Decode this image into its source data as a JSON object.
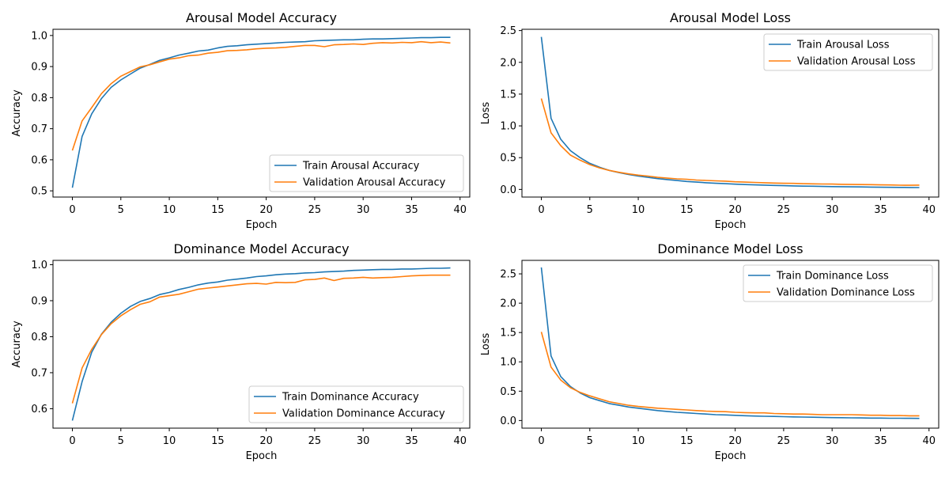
{
  "chart_data": [
    {
      "id": "arousal-acc",
      "type": "line",
      "title": "Arousal Model Accuracy",
      "xlabel": "Epoch",
      "ylabel": "Accuracy",
      "xlim": [
        -2,
        41
      ],
      "ylim": [
        0.48,
        1.02
      ],
      "xticks": [
        0,
        5,
        10,
        15,
        20,
        25,
        30,
        35,
        40
      ],
      "yticks": [
        0.5,
        0.6,
        0.7,
        0.8,
        0.9,
        1.0
      ],
      "ytick_labels": [
        "0.5",
        "0.6",
        "0.7",
        "0.8",
        "0.9",
        "1.0"
      ],
      "legend_position": "lower-right",
      "series": [
        {
          "name": "Train Arousal Accuracy",
          "color": "#1f77b4",
          "values": [
            0.51,
            0.675,
            0.748,
            0.797,
            0.833,
            0.857,
            0.876,
            0.895,
            0.907,
            0.92,
            0.928,
            0.937,
            0.943,
            0.95,
            0.953,
            0.96,
            0.965,
            0.967,
            0.97,
            0.972,
            0.974,
            0.976,
            0.978,
            0.979,
            0.98,
            0.983,
            0.984,
            0.985,
            0.986,
            0.986,
            0.988,
            0.989,
            0.989,
            0.99,
            0.991,
            0.992,
            0.993,
            0.993,
            0.994,
            0.994
          ]
        },
        {
          "name": "Validation Arousal Accuracy",
          "color": "#ff7f0e",
          "values": [
            0.63,
            0.725,
            0.768,
            0.813,
            0.845,
            0.869,
            0.884,
            0.899,
            0.906,
            0.915,
            0.924,
            0.928,
            0.935,
            0.937,
            0.943,
            0.946,
            0.951,
            0.952,
            0.954,
            0.957,
            0.959,
            0.96,
            0.962,
            0.965,
            0.968,
            0.968,
            0.964,
            0.97,
            0.971,
            0.973,
            0.971,
            0.975,
            0.977,
            0.976,
            0.978,
            0.977,
            0.98,
            0.977,
            0.979,
            0.976
          ]
        }
      ]
    },
    {
      "id": "arousal-loss",
      "type": "line",
      "title": "Arousal Model Loss",
      "xlabel": "Epoch",
      "ylabel": "Loss",
      "xlim": [
        -2,
        41
      ],
      "ylim": [
        -0.12,
        2.52
      ],
      "xticks": [
        0,
        5,
        10,
        15,
        20,
        25,
        30,
        35,
        40
      ],
      "yticks": [
        0,
        0.5,
        1.0,
        1.5,
        2.0,
        2.5
      ],
      "ytick_labels": [
        "0.0",
        "0.5",
        "1.0",
        "1.5",
        "2.0",
        "2.5"
      ],
      "legend_position": "upper-right",
      "series": [
        {
          "name": "Train Arousal Loss",
          "color": "#1f77b4",
          "values": [
            2.4,
            1.12,
            0.79,
            0.61,
            0.5,
            0.41,
            0.35,
            0.3,
            0.265,
            0.235,
            0.21,
            0.19,
            0.17,
            0.155,
            0.14,
            0.125,
            0.115,
            0.105,
            0.097,
            0.09,
            0.083,
            0.077,
            0.072,
            0.068,
            0.063,
            0.059,
            0.056,
            0.052,
            0.05,
            0.047,
            0.045,
            0.043,
            0.041,
            0.039,
            0.037,
            0.035,
            0.033,
            0.032,
            0.031,
            0.03
          ]
        },
        {
          "name": "Validation Arousal Loss",
          "color": "#ff7f0e",
          "values": [
            1.43,
            0.89,
            0.69,
            0.54,
            0.46,
            0.39,
            0.34,
            0.3,
            0.27,
            0.245,
            0.225,
            0.21,
            0.19,
            0.178,
            0.167,
            0.16,
            0.148,
            0.142,
            0.135,
            0.13,
            0.12,
            0.115,
            0.11,
            0.105,
            0.1,
            0.097,
            0.095,
            0.09,
            0.088,
            0.086,
            0.084,
            0.08,
            0.078,
            0.077,
            0.075,
            0.072,
            0.07,
            0.067,
            0.066,
            0.068
          ]
        }
      ]
    },
    {
      "id": "dominance-acc",
      "type": "line",
      "title": "Dominance Model Accuracy",
      "xlabel": "Epoch",
      "ylabel": "Accuracy",
      "xlim": [
        -2,
        41
      ],
      "ylim": [
        0.546,
        1.012
      ],
      "xticks": [
        0,
        5,
        10,
        15,
        20,
        25,
        30,
        35,
        40
      ],
      "yticks": [
        0.6,
        0.7,
        0.8,
        0.9,
        1.0
      ],
      "ytick_labels": [
        "0.6",
        "0.7",
        "0.8",
        "0.9",
        "1.0"
      ],
      "legend_position": "lower-right",
      "series": [
        {
          "name": "Train Dominance Accuracy",
          "color": "#1f77b4",
          "values": [
            0.567,
            0.675,
            0.757,
            0.807,
            0.84,
            0.865,
            0.884,
            0.898,
            0.906,
            0.917,
            0.923,
            0.931,
            0.937,
            0.944,
            0.949,
            0.952,
            0.957,
            0.96,
            0.963,
            0.967,
            0.969,
            0.972,
            0.974,
            0.975,
            0.977,
            0.978,
            0.98,
            0.981,
            0.982,
            0.984,
            0.985,
            0.986,
            0.987,
            0.987,
            0.988,
            0.988,
            0.989,
            0.99,
            0.99,
            0.991
          ]
        },
        {
          "name": "Validation Dominance Accuracy",
          "color": "#ff7f0e",
          "values": [
            0.615,
            0.713,
            0.765,
            0.806,
            0.836,
            0.858,
            0.875,
            0.89,
            0.897,
            0.91,
            0.914,
            0.918,
            0.925,
            0.932,
            0.935,
            0.938,
            0.941,
            0.944,
            0.947,
            0.948,
            0.946,
            0.951,
            0.95,
            0.951,
            0.958,
            0.959,
            0.963,
            0.956,
            0.962,
            0.963,
            0.965,
            0.963,
            0.964,
            0.965,
            0.967,
            0.969,
            0.97,
            0.971,
            0.971,
            0.971
          ]
        }
      ]
    },
    {
      "id": "dominance-loss",
      "type": "line",
      "title": "Dominance Model Loss",
      "xlabel": "Epoch",
      "ylabel": "Loss",
      "xlim": [
        -2,
        41
      ],
      "ylim": [
        -0.13,
        2.73
      ],
      "xticks": [
        0,
        5,
        10,
        15,
        20,
        25,
        30,
        35,
        40
      ],
      "yticks": [
        0,
        0.5,
        1.0,
        1.5,
        2.0,
        2.5
      ],
      "ytick_labels": [
        "0.0",
        "0.5",
        "1.0",
        "1.5",
        "2.0",
        "2.5"
      ],
      "legend_position": "upper-right",
      "series": [
        {
          "name": "Train Dominance Loss",
          "color": "#1f77b4",
          "values": [
            2.61,
            1.1,
            0.75,
            0.58,
            0.47,
            0.39,
            0.34,
            0.29,
            0.26,
            0.23,
            0.21,
            0.19,
            0.17,
            0.155,
            0.14,
            0.13,
            0.12,
            0.11,
            0.1,
            0.095,
            0.088,
            0.082,
            0.077,
            0.073,
            0.069,
            0.065,
            0.062,
            0.059,
            0.056,
            0.053,
            0.05,
            0.048,
            0.046,
            0.044,
            0.042,
            0.041,
            0.039,
            0.038,
            0.037,
            0.036
          ]
        },
        {
          "name": "Validation Dominance Loss",
          "color": "#ff7f0e",
          "values": [
            1.51,
            0.91,
            0.69,
            0.56,
            0.48,
            0.42,
            0.37,
            0.32,
            0.29,
            0.26,
            0.24,
            0.225,
            0.21,
            0.2,
            0.19,
            0.18,
            0.17,
            0.16,
            0.155,
            0.15,
            0.14,
            0.135,
            0.13,
            0.13,
            0.12,
            0.115,
            0.11,
            0.11,
            0.105,
            0.1,
            0.1,
            0.1,
            0.1,
            0.095,
            0.09,
            0.09,
            0.085,
            0.085,
            0.08,
            0.08
          ]
        }
      ]
    }
  ]
}
